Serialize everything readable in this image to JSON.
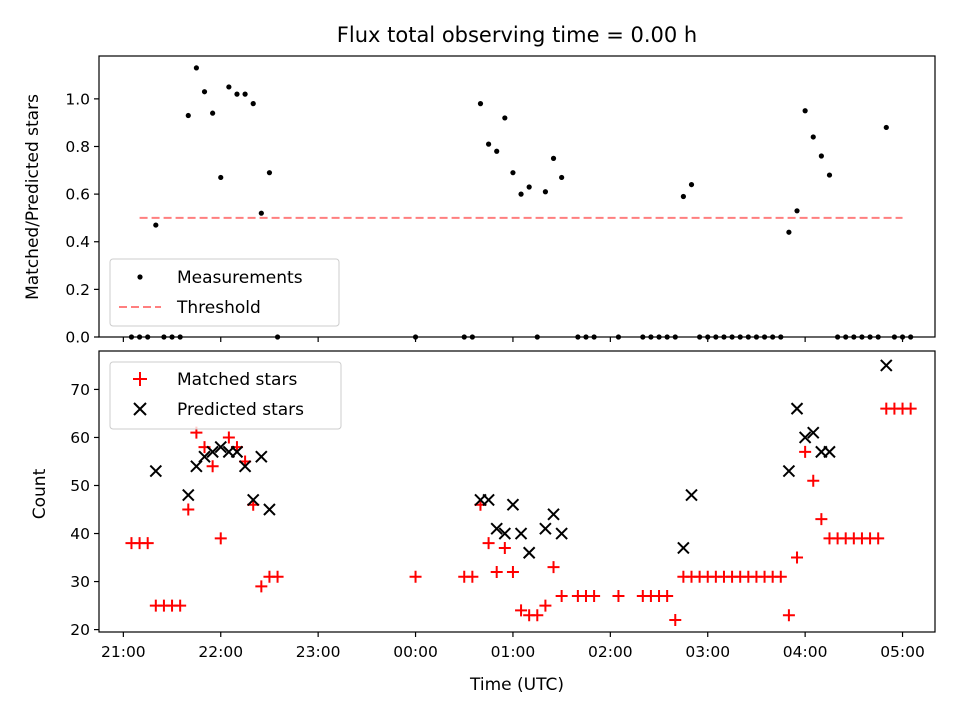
{
  "chart_data": [
    {
      "type": "scatter",
      "title": "Flux total observing time = 0.00 h",
      "ylabel": "Matched/Predicted stars",
      "xlabel": "",
      "xlim": [
        "20:45",
        "05:20"
      ],
      "ylim": [
        0,
        1.18
      ],
      "yticks": [
        0.0,
        0.2,
        0.4,
        0.6,
        0.8,
        1.0
      ],
      "ytick_labels": [
        "0.0",
        "0.2",
        "0.4",
        "0.6",
        "0.8",
        "1.0"
      ],
      "series": [
        {
          "name": "Measurements",
          "marker": "dot",
          "color": "#000000",
          "points": [
            [
              "21:05",
              0
            ],
            [
              "21:10",
              0
            ],
            [
              "21:15",
              0
            ],
            [
              "21:20",
              0.47
            ],
            [
              "21:25",
              0
            ],
            [
              "21:30",
              0
            ],
            [
              "21:35",
              0
            ],
            [
              "21:40",
              0.93
            ],
            [
              "21:45",
              1.13
            ],
            [
              "21:50",
              1.03
            ],
            [
              "21:55",
              0.94
            ],
            [
              "22:00",
              0.67
            ],
            [
              "22:05",
              1.05
            ],
            [
              "22:10",
              1.02
            ],
            [
              "22:15",
              1.02
            ],
            [
              "22:20",
              0.98
            ],
            [
              "22:25",
              0.52
            ],
            [
              "22:30",
              0.69
            ],
            [
              "22:35",
              0
            ],
            [
              "00:00",
              0
            ],
            [
              "00:30",
              0
            ],
            [
              "00:35",
              0
            ],
            [
              "00:40",
              0.98
            ],
            [
              "00:45",
              0.81
            ],
            [
              "00:50",
              0.78
            ],
            [
              "00:55",
              0.92
            ],
            [
              "01:00",
              0.69
            ],
            [
              "01:05",
              0.6
            ],
            [
              "01:10",
              0.63
            ],
            [
              "01:15",
              0
            ],
            [
              "01:20",
              0.61
            ],
            [
              "01:25",
              0.75
            ],
            [
              "01:30",
              0.67
            ],
            [
              "01:40",
              0
            ],
            [
              "01:45",
              0
            ],
            [
              "01:50",
              0
            ],
            [
              "02:05",
              0
            ],
            [
              "02:20",
              0
            ],
            [
              "02:25",
              0
            ],
            [
              "02:30",
              0
            ],
            [
              "02:35",
              0
            ],
            [
              "02:40",
              0
            ],
            [
              "02:45",
              0.59
            ],
            [
              "02:50",
              0.64
            ],
            [
              "02:55",
              0
            ],
            [
              "03:00",
              0
            ],
            [
              "03:05",
              0
            ],
            [
              "03:10",
              0
            ],
            [
              "03:15",
              0
            ],
            [
              "03:20",
              0
            ],
            [
              "03:25",
              0
            ],
            [
              "03:30",
              0
            ],
            [
              "03:35",
              0
            ],
            [
              "03:40",
              0
            ],
            [
              "03:45",
              0
            ],
            [
              "03:50",
              0.44
            ],
            [
              "03:55",
              0.53
            ],
            [
              "04:00",
              0.95
            ],
            [
              "04:05",
              0.84
            ],
            [
              "04:10",
              0.76
            ],
            [
              "04:15",
              0.68
            ],
            [
              "04:20",
              0
            ],
            [
              "04:25",
              0
            ],
            [
              "04:30",
              0
            ],
            [
              "04:35",
              0
            ],
            [
              "04:40",
              0
            ],
            [
              "04:45",
              0
            ],
            [
              "04:50",
              0.88
            ],
            [
              "04:55",
              0
            ],
            [
              "05:00",
              0
            ],
            [
              "05:05",
              0
            ]
          ]
        },
        {
          "name": "Threshold",
          "line": "dashed",
          "color": "#ff7f7f",
          "x": [
            "21:10",
            "05:00"
          ],
          "y": [
            0.5,
            0.5
          ]
        }
      ],
      "legend": {
        "position": "lower-left",
        "entries": [
          "Measurements",
          "Threshold"
        ]
      }
    },
    {
      "type": "scatter",
      "title": "",
      "ylabel": "Count",
      "xlabel": "Time (UTC)",
      "xlim": [
        "20:45",
        "05:20"
      ],
      "ylim": [
        19.5,
        78
      ],
      "yticks": [
        20,
        30,
        40,
        50,
        60,
        70
      ],
      "ytick_labels": [
        "20",
        "30",
        "40",
        "50",
        "60",
        "70"
      ],
      "xtick_labels": [
        "21:00",
        "22:00",
        "23:00",
        "00:00",
        "01:00",
        "02:00",
        "03:00",
        "04:00",
        "05:00"
      ],
      "series": [
        {
          "name": "Matched stars",
          "marker": "plus",
          "color": "#ff0000",
          "points": [
            [
              "21:05",
              38
            ],
            [
              "21:10",
              38
            ],
            [
              "21:15",
              38
            ],
            [
              "21:20",
              25
            ],
            [
              "21:25",
              25
            ],
            [
              "21:30",
              25
            ],
            [
              "21:35",
              25
            ],
            [
              "21:40",
              45
            ],
            [
              "21:45",
              61
            ],
            [
              "21:50",
              58
            ],
            [
              "21:55",
              54
            ],
            [
              "22:00",
              39
            ],
            [
              "22:05",
              60
            ],
            [
              "22:10",
              58
            ],
            [
              "22:15",
              55
            ],
            [
              "22:20",
              46
            ],
            [
              "22:25",
              29
            ],
            [
              "22:30",
              31
            ],
            [
              "22:35",
              31
            ],
            [
              "00:00",
              31
            ],
            [
              "00:30",
              31
            ],
            [
              "00:35",
              31
            ],
            [
              "00:40",
              46
            ],
            [
              "00:45",
              38
            ],
            [
              "00:50",
              32
            ],
            [
              "00:55",
              37
            ],
            [
              "01:00",
              32
            ],
            [
              "01:05",
              24
            ],
            [
              "01:10",
              23
            ],
            [
              "01:15",
              23
            ],
            [
              "01:20",
              25
            ],
            [
              "01:25",
              33
            ],
            [
              "01:30",
              27
            ],
            [
              "01:40",
              27
            ],
            [
              "01:45",
              27
            ],
            [
              "01:50",
              27
            ],
            [
              "02:05",
              27
            ],
            [
              "02:20",
              27
            ],
            [
              "02:25",
              27
            ],
            [
              "02:30",
              27
            ],
            [
              "02:35",
              27
            ],
            [
              "02:40",
              22
            ],
            [
              "02:45",
              31
            ],
            [
              "02:50",
              31
            ],
            [
              "02:55",
              31
            ],
            [
              "03:00",
              31
            ],
            [
              "03:05",
              31
            ],
            [
              "03:10",
              31
            ],
            [
              "03:15",
              31
            ],
            [
              "03:20",
              31
            ],
            [
              "03:25",
              31
            ],
            [
              "03:30",
              31
            ],
            [
              "03:35",
              31
            ],
            [
              "03:40",
              31
            ],
            [
              "03:45",
              31
            ],
            [
              "03:50",
              23
            ],
            [
              "03:55",
              35
            ],
            [
              "04:00",
              57
            ],
            [
              "04:05",
              51
            ],
            [
              "04:10",
              43
            ],
            [
              "04:15",
              39
            ],
            [
              "04:20",
              39
            ],
            [
              "04:25",
              39
            ],
            [
              "04:30",
              39
            ],
            [
              "04:35",
              39
            ],
            [
              "04:40",
              39
            ],
            [
              "04:45",
              39
            ],
            [
              "04:50",
              66
            ],
            [
              "04:55",
              66
            ],
            [
              "05:00",
              66
            ],
            [
              "05:05",
              66
            ]
          ]
        },
        {
          "name": "Predicted stars",
          "marker": "x",
          "color": "#000000",
          "points": [
            [
              "21:20",
              53
            ],
            [
              "21:40",
              48
            ],
            [
              "21:45",
              54
            ],
            [
              "21:50",
              56
            ],
            [
              "21:55",
              57
            ],
            [
              "22:00",
              58
            ],
            [
              "22:05",
              57
            ],
            [
              "22:10",
              57
            ],
            [
              "22:15",
              54
            ],
            [
              "22:20",
              47
            ],
            [
              "22:25",
              56
            ],
            [
              "22:30",
              45
            ],
            [
              "00:40",
              47
            ],
            [
              "00:45",
              47
            ],
            [
              "00:50",
              41
            ],
            [
              "00:55",
              40
            ],
            [
              "01:00",
              46
            ],
            [
              "01:05",
              40
            ],
            [
              "01:10",
              36
            ],
            [
              "01:20",
              41
            ],
            [
              "01:25",
              44
            ],
            [
              "01:30",
              40
            ],
            [
              "02:45",
              37
            ],
            [
              "02:50",
              48
            ],
            [
              "03:50",
              53
            ],
            [
              "03:55",
              66
            ],
            [
              "04:00",
              60
            ],
            [
              "04:05",
              61
            ],
            [
              "04:10",
              57
            ],
            [
              "04:15",
              57
            ],
            [
              "04:50",
              75
            ]
          ]
        }
      ],
      "legend": {
        "position": "upper-left",
        "entries": [
          "Matched stars",
          "Predicted stars"
        ]
      }
    }
  ]
}
